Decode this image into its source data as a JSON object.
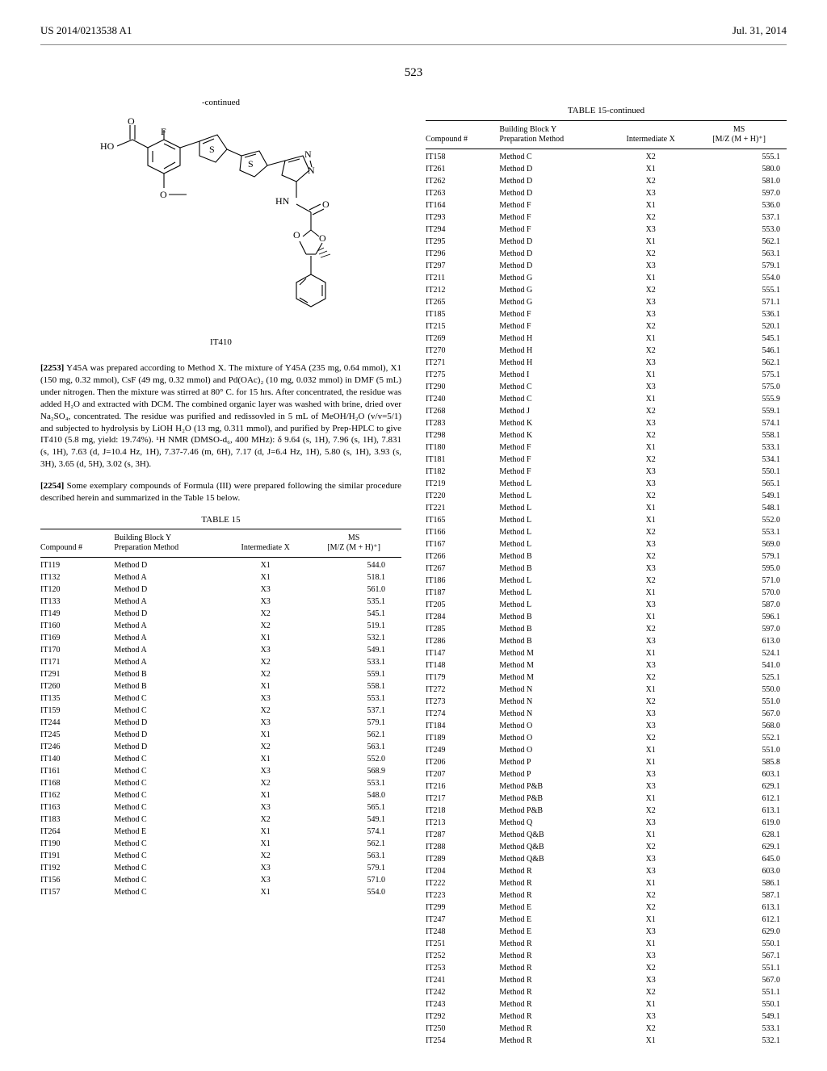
{
  "header": {
    "patent_no": "US 2014/0213538 A1",
    "date": "Jul. 31, 2014"
  },
  "page_number": "523",
  "continued_label": "-continued",
  "compound_label": "IT410",
  "paragraph1": {
    "num": "[2253]",
    "text": "Y45A was prepared according to Method X. The mixture of Y45A (235 mg, 0.64 mmol), X1 (150 mg, 0.32 mmol), CsF (49 mg, 0.32 mmol) and Pd(OAc)₂ (10 mg, 0.032 mmol) in DMF (5 mL) under nitrogen. Then the mixture was stirred at 80° C. for 15 hrs. After concentrated, the residue was added H₂O and extracted with DCM. The combined organic layer was washed with brine, dried over Na₂SO₄, concentrated. The residue was purified and redissovled in 5 mL of MeOH/H₂O (v/v=5/1) and subjected to hydrolysis by LiOH H₂O (13 mg, 0.311 mmol), and purified by Prep-HPLC to give IT410 (5.8 mg, yield: 19.74%). ¹H NMR (DMSO-d₆, 400 MHz): δ 9.64 (s, 1H), 7.96 (s, 1H), 7.831 (s, 1H), 7.63 (d, J=10.4 Hz, 1H), 7.37-7.46 (m, 6H), 7.17 (d, J=6.4 Hz, 1H), 5.80 (s, 1H), 3.93 (s, 3H), 3.65 (d, 5H), 3.02 (s, 3H)."
  },
  "paragraph2": {
    "num": "[2254]",
    "text": "Some exemplary compounds of Formula (III) were prepared following the similar procedure described herein and summarized in the Table 15 below."
  },
  "table_label": "TABLE 15",
  "table_label_cont": "TABLE 15-continued",
  "table_headers": {
    "col1": "Compound #",
    "col2a": "Building Block Y",
    "col2b": "Preparation Method",
    "col3": "Intermediate X",
    "col4a": "MS",
    "col4b": "[M/Z (M + H)⁺]"
  },
  "table15_left": [
    [
      "IT119",
      "Method D",
      "X1",
      "544.0"
    ],
    [
      "IT132",
      "Method A",
      "X1",
      "518.1"
    ],
    [
      "IT120",
      "Method D",
      "X3",
      "561.0"
    ],
    [
      "IT133",
      "Method A",
      "X3",
      "535.1"
    ],
    [
      "IT149",
      "Method D",
      "X2",
      "545.1"
    ],
    [
      "IT160",
      "Method A",
      "X2",
      "519.1"
    ],
    [
      "IT169",
      "Method A",
      "X1",
      "532.1"
    ],
    [
      "IT170",
      "Method A",
      "X3",
      "549.1"
    ],
    [
      "IT171",
      "Method A",
      "X2",
      "533.1"
    ],
    [
      "IT291",
      "Method B",
      "X2",
      "559.1"
    ],
    [
      "IT260",
      "Method B",
      "X1",
      "558.1"
    ],
    [
      "IT135",
      "Method C",
      "X3",
      "553.1"
    ],
    [
      "IT159",
      "Method C",
      "X2",
      "537.1"
    ],
    [
      "IT244",
      "Method D",
      "X3",
      "579.1"
    ],
    [
      "IT245",
      "Method D",
      "X1",
      "562.1"
    ],
    [
      "IT246",
      "Method D",
      "X2",
      "563.1"
    ],
    [
      "IT140",
      "Method C",
      "X1",
      "552.0"
    ],
    [
      "IT161",
      "Method C",
      "X3",
      "568.9"
    ],
    [
      "IT168",
      "Method C",
      "X2",
      "553.1"
    ],
    [
      "IT162",
      "Method C",
      "X1",
      "548.0"
    ],
    [
      "IT163",
      "Method C",
      "X3",
      "565.1"
    ],
    [
      "IT183",
      "Method C",
      "X2",
      "549.1"
    ],
    [
      "IT264",
      "Method E",
      "X1",
      "574.1"
    ],
    [
      "IT190",
      "Method C",
      "X1",
      "562.1"
    ],
    [
      "IT191",
      "Method C",
      "X2",
      "563.1"
    ],
    [
      "IT192",
      "Method C",
      "X3",
      "579.1"
    ],
    [
      "IT156",
      "Method C",
      "X3",
      "571.0"
    ],
    [
      "IT157",
      "Method C",
      "X1",
      "554.0"
    ]
  ],
  "table15_right": [
    [
      "IT158",
      "Method C",
      "X2",
      "555.1"
    ],
    [
      "IT261",
      "Method D",
      "X1",
      "580.0"
    ],
    [
      "IT262",
      "Method D",
      "X2",
      "581.0"
    ],
    [
      "IT263",
      "Method D",
      "X3",
      "597.0"
    ],
    [
      "IT164",
      "Method F",
      "X1",
      "536.0"
    ],
    [
      "IT293",
      "Method F",
      "X2",
      "537.1"
    ],
    [
      "IT294",
      "Method F",
      "X3",
      "553.0"
    ],
    [
      "IT295",
      "Method D",
      "X1",
      "562.1"
    ],
    [
      "IT296",
      "Method D",
      "X2",
      "563.1"
    ],
    [
      "IT297",
      "Method D",
      "X3",
      "579.1"
    ],
    [
      "IT211",
      "Method G",
      "X1",
      "554.0"
    ],
    [
      "IT212",
      "Method G",
      "X2",
      "555.1"
    ],
    [
      "IT265",
      "Method G",
      "X3",
      "571.1"
    ],
    [
      "IT185",
      "Method F",
      "X3",
      "536.1"
    ],
    [
      "IT215",
      "Method F",
      "X2",
      "520.1"
    ],
    [
      "IT269",
      "Method H",
      "X1",
      "545.1"
    ],
    [
      "IT270",
      "Method H",
      "X2",
      "546.1"
    ],
    [
      "IT271",
      "Method H",
      "X3",
      "562.1"
    ],
    [
      "IT275",
      "Method I",
      "X1",
      "575.1"
    ],
    [
      "IT290",
      "Method C",
      "X3",
      "575.0"
    ],
    [
      "IT240",
      "Method C",
      "X1",
      "555.9"
    ],
    [
      "IT268",
      "Method J",
      "X2",
      "559.1"
    ],
    [
      "IT283",
      "Method K",
      "X3",
      "574.1"
    ],
    [
      "IT298",
      "Method K",
      "X2",
      "558.1"
    ],
    [
      "IT180",
      "Method F",
      "X1",
      "533.1"
    ],
    [
      "IT181",
      "Method F",
      "X2",
      "534.1"
    ],
    [
      "IT182",
      "Method F",
      "X3",
      "550.1"
    ],
    [
      "IT219",
      "Method L",
      "X3",
      "565.1"
    ],
    [
      "IT220",
      "Method L",
      "X2",
      "549.1"
    ],
    [
      "IT221",
      "Method L",
      "X1",
      "548.1"
    ],
    [
      "IT165",
      "Method L",
      "X1",
      "552.0"
    ],
    [
      "IT166",
      "Method L",
      "X2",
      "553.1"
    ],
    [
      "IT167",
      "Method L",
      "X3",
      "569.0"
    ],
    [
      "IT266",
      "Method B",
      "X2",
      "579.1"
    ],
    [
      "IT267",
      "Method B",
      "X3",
      "595.0"
    ],
    [
      "IT186",
      "Method L",
      "X2",
      "571.0"
    ],
    [
      "IT187",
      "Method L",
      "X1",
      "570.0"
    ],
    [
      "IT205",
      "Method L",
      "X3",
      "587.0"
    ],
    [
      "IT284",
      "Method B",
      "X1",
      "596.1"
    ],
    [
      "IT285",
      "Method B",
      "X2",
      "597.0"
    ],
    [
      "IT286",
      "Method B",
      "X3",
      "613.0"
    ],
    [
      "IT147",
      "Method M",
      "X1",
      "524.1"
    ],
    [
      "IT148",
      "Method M",
      "X3",
      "541.0"
    ],
    [
      "IT179",
      "Method M",
      "X2",
      "525.1"
    ],
    [
      "IT272",
      "Method N",
      "X1",
      "550.0"
    ],
    [
      "IT273",
      "Method N",
      "X2",
      "551.0"
    ],
    [
      "IT274",
      "Method N",
      "X3",
      "567.0"
    ],
    [
      "IT184",
      "Method O",
      "X3",
      "568.0"
    ],
    [
      "IT189",
      "Method O",
      "X2",
      "552.1"
    ],
    [
      "IT249",
      "Method O",
      "X1",
      "551.0"
    ],
    [
      "IT206",
      "Method P",
      "X1",
      "585.8"
    ],
    [
      "IT207",
      "Method P",
      "X3",
      "603.1"
    ],
    [
      "IT216",
      "Method P&B",
      "X3",
      "629.1"
    ],
    [
      "IT217",
      "Method P&B",
      "X1",
      "612.1"
    ],
    [
      "IT218",
      "Method P&B",
      "X2",
      "613.1"
    ],
    [
      "IT213",
      "Method Q",
      "X3",
      "619.0"
    ],
    [
      "IT287",
      "Method Q&B",
      "X1",
      "628.1"
    ],
    [
      "IT288",
      "Method Q&B",
      "X2",
      "629.1"
    ],
    [
      "IT289",
      "Method Q&B",
      "X3",
      "645.0"
    ],
    [
      "IT204",
      "Method R",
      "X3",
      "603.0"
    ],
    [
      "IT222",
      "Method R",
      "X1",
      "586.1"
    ],
    [
      "IT223",
      "Method R",
      "X2",
      "587.1"
    ],
    [
      "IT299",
      "Method E",
      "X2",
      "613.1"
    ],
    [
      "IT247",
      "Method E",
      "X1",
      "612.1"
    ],
    [
      "IT248",
      "Method E",
      "X3",
      "629.0"
    ],
    [
      "IT251",
      "Method R",
      "X1",
      "550.1"
    ],
    [
      "IT252",
      "Method R",
      "X3",
      "567.1"
    ],
    [
      "IT253",
      "Method R",
      "X2",
      "551.1"
    ],
    [
      "IT241",
      "Method R",
      "X3",
      "567.0"
    ],
    [
      "IT242",
      "Method R",
      "X2",
      "551.1"
    ],
    [
      "IT243",
      "Method R",
      "X1",
      "550.1"
    ],
    [
      "IT292",
      "Method R",
      "X3",
      "549.1"
    ],
    [
      "IT250",
      "Method R",
      "X2",
      "533.1"
    ],
    [
      "IT254",
      "Method R",
      "X1",
      "532.1"
    ]
  ]
}
